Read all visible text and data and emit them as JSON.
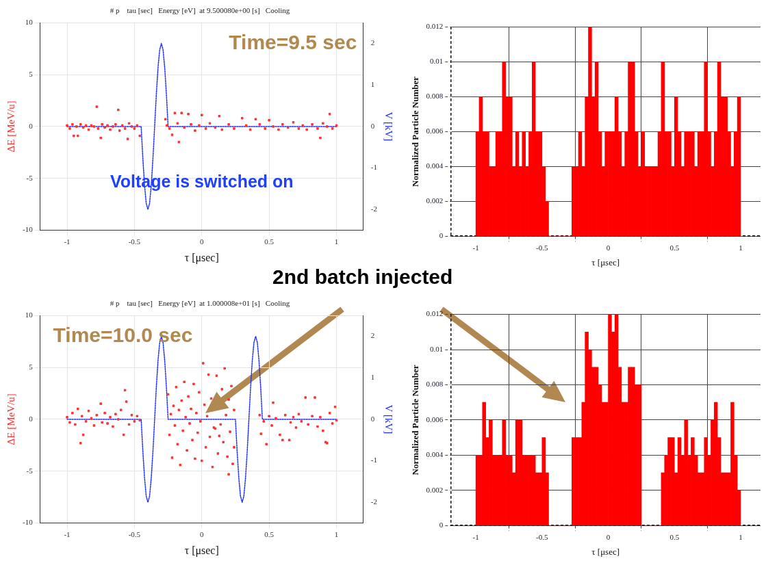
{
  "chart_data": [
    {
      "type": "scatter",
      "title": "# p    tau [sec]   Energy [eV]  at 9.500080e+00 [s]   Cooling",
      "xlabel": "τ [μsec]",
      "ylabel": "ΔE [MeV/u]",
      "y2label": "V [kV]",
      "annotations": [
        "Time=9.5 sec",
        "Voltage is switched on"
      ],
      "xlim": [
        -1.2,
        1.2
      ],
      "xticks": [
        -1,
        -0.5,
        0,
        0.5,
        1
      ],
      "ylim": [
        -10,
        10
      ],
      "yticks": [
        -10,
        -5,
        0,
        5,
        10
      ],
      "y2lim": [
        -2.5,
        2.5
      ],
      "y2ticks": [
        -2,
        -1,
        0,
        1,
        2
      ],
      "grid": true,
      "series": [
        {
          "type": "scatter",
          "color": "#ff3030",
          "marker": "square",
          "x": [
            -1,
            -0.98,
            -0.96,
            -0.95,
            -0.93,
            -0.92,
            -0.9,
            -0.88,
            -0.86,
            -0.84,
            -0.82,
            -0.8,
            -0.78,
            -0.77,
            -0.75,
            -0.74,
            -0.72,
            -0.7,
            -0.68,
            -0.66,
            -0.64,
            -0.62,
            -0.61,
            -0.59,
            -0.57,
            -0.55,
            -0.54,
            -0.52,
            -0.5,
            -0.48,
            -0.46,
            -0.27,
            -0.26,
            -0.24,
            -0.22,
            -0.2,
            -0.18,
            -0.17,
            -0.15,
            -0.13,
            -0.1,
            -0.08,
            -0.05,
            -0.02,
            0,
            0.03,
            0.06,
            0.1,
            0.13,
            0.15,
            0.2,
            0.24,
            0.3,
            0.33,
            0.36,
            0.4,
            0.43,
            0.47,
            0.5,
            0.53,
            0.57,
            0.6,
            0.64,
            0.68,
            0.72,
            0.75,
            0.78,
            0.82,
            0.86,
            0.88,
            0.9,
            0.93,
            0.95,
            0.97,
            1
          ],
          "values": [
            0.1,
            -0.2,
            0.2,
            -0.9,
            0,
            -0.9,
            0.2,
            -0.1,
            0.1,
            -0.3,
            0.1,
            0,
            1.9,
            -0.2,
            -1.1,
            0.2,
            -0.1,
            0.1,
            -0.3,
            0,
            0.2,
            1.6,
            -0.4,
            0.1,
            -0.2,
            -1.2,
            0.3,
            0,
            -0.2,
            0.1,
            -0.9,
            0.7,
            0.1,
            -0.2,
            -0.8,
            1.3,
            0.3,
            -1.5,
            1.3,
            -0.1,
            1.2,
            0.2,
            -0.4,
            0.1,
            1.1,
            -0.2,
            0.3,
            -0.1,
            1,
            -0.3,
            0.2,
            -0.2,
            0.8,
            0.1,
            -0.3,
            0.7,
            0.2,
            -0.2,
            0.6,
            0,
            -0.3,
            0.2,
            -0.1,
            0.4,
            -0.2,
            0.1,
            -0.3,
            0.2,
            -0.2,
            -1.1,
            0.3,
            0,
            1.2,
            -0.2,
            0.1
          ]
        },
        {
          "type": "line",
          "axis": "y2",
          "color": "#2030ff",
          "line_style": "dotted",
          "marker": "none",
          "x": [
            -1,
            -0.45,
            -0.4375,
            -0.425,
            -0.4125,
            -0.4,
            -0.3875,
            -0.375,
            -0.3625,
            -0.35,
            -0.3375,
            -0.325,
            -0.3125,
            -0.3,
            -0.2875,
            -0.275,
            -0.2625,
            -0.25,
            1
          ],
          "values": [
            0,
            0,
            -0.77,
            -1.41,
            -1.85,
            -2,
            -1.85,
            -1.41,
            -0.77,
            0,
            0.77,
            1.41,
            1.85,
            2,
            1.85,
            1.41,
            0.77,
            0,
            0
          ]
        }
      ]
    },
    {
      "type": "histogram",
      "xlabel": "τ [μsec]",
      "ylabel": "Normalized Particle Number",
      "xlim": [
        -1.19,
        1.15
      ],
      "xticks": [
        -1,
        -0.5,
        0,
        0.5,
        1
      ],
      "ylim": [
        0,
        0.012
      ],
      "yticks": [
        0,
        0.002,
        0.004,
        0.006,
        0.008,
        0.01,
        0.012
      ],
      "grid": true,
      "color": "#ff0000",
      "bins": [
        -1,
        -0.975,
        -0.95,
        -0.925,
        -0.9,
        -0.875,
        -0.85,
        -0.825,
        -0.8,
        -0.775,
        -0.75,
        -0.725,
        -0.7,
        -0.675,
        -0.65,
        -0.625,
        -0.6,
        -0.575,
        -0.55,
        -0.525,
        -0.5,
        -0.475,
        -0.45,
        -0.425,
        -0.4,
        -0.375,
        -0.35,
        -0.325,
        -0.3,
        -0.275,
        -0.25,
        -0.225,
        -0.2,
        -0.175,
        -0.15,
        -0.125,
        -0.1,
        -0.075,
        -0.05,
        -0.025,
        0,
        0.025,
        0.05,
        0.075,
        0.1,
        0.125,
        0.15,
        0.175,
        0.2,
        0.225,
        0.25,
        0.275,
        0.3,
        0.325,
        0.35,
        0.375,
        0.4,
        0.425,
        0.45,
        0.475,
        0.5,
        0.525,
        0.55,
        0.575,
        0.6,
        0.625,
        0.65,
        0.675,
        0.7,
        0.725,
        0.75,
        0.775,
        0.8,
        0.825,
        0.85,
        0.875,
        0.9,
        0.925,
        0.95,
        0.975,
        1
      ],
      "values": [
        0.006,
        0.008,
        0.006,
        0.006,
        0.004,
        0.004,
        0.006,
        0.006,
        0.01,
        0.008,
        0.008,
        0.004,
        0.006,
        0.004,
        0.006,
        0.004,
        0.006,
        0.01,
        0.006,
        0.006,
        0.004,
        0.002,
        0,
        0,
        0,
        0,
        0,
        0,
        0,
        0.004,
        0.004,
        0.006,
        0.004,
        0.008,
        0.012,
        0.008,
        0.01,
        0.006,
        0.004,
        0.006,
        0.006,
        0.006,
        0.008,
        0.006,
        0.004,
        0.006,
        0.01,
        0.01,
        0.006,
        0.004,
        0.006,
        0.004,
        0.004,
        0.004,
        0.004,
        0.006,
        0.01,
        0.006,
        0.006,
        0.004,
        0.008,
        0.006,
        0.004,
        0.006,
        0.006,
        0.006,
        0.004,
        0.006,
        0.006,
        0.01,
        0.006,
        0.004,
        0.006,
        0.01,
        0.008,
        0.008,
        0.006,
        0.004,
        0.006,
        0.008
      ]
    },
    {
      "type": "scatter",
      "title": "# p    tau [sec]   Energy [eV]  at 1.000008e+01 [s]   Cooling",
      "xlabel": "τ [μsec]",
      "ylabel": "ΔE [MeV/u]",
      "y2label": "V [kV]",
      "annotations": [
        "Time=10.0 sec",
        "2nd batch injected"
      ],
      "xlim": [
        -1.2,
        1.2
      ],
      "xticks": [
        -1,
        -0.5,
        0,
        0.5,
        1
      ],
      "ylim": [
        -10,
        10
      ],
      "yticks": [
        -10,
        -5,
        0,
        5,
        10
      ],
      "y2lim": [
        -2.5,
        2.5
      ],
      "y2ticks": [
        -2,
        -1,
        0,
        1,
        2
      ],
      "grid": true,
      "series": [
        {
          "type": "scatter",
          "color": "#ff3030",
          "marker": "square",
          "x": [
            -1,
            -0.98,
            -0.96,
            -0.94,
            -0.92,
            -0.9,
            -0.89,
            -0.88,
            -0.86,
            -0.84,
            -0.82,
            -0.8,
            -0.78,
            -0.75,
            -0.74,
            -0.72,
            -0.7,
            -0.68,
            -0.66,
            -0.64,
            -0.62,
            -0.6,
            -0.58,
            -0.57,
            -0.56,
            -0.54,
            -0.52,
            -0.5,
            -0.48,
            -0.46,
            -0.25,
            -0.24,
            -0.23,
            -0.22,
            -0.21,
            -0.2,
            -0.19,
            -0.18,
            -0.17,
            -0.16,
            -0.15,
            -0.14,
            -0.13,
            -0.12,
            -0.11,
            -0.1,
            -0.09,
            -0.08,
            -0.07,
            -0.06,
            -0.05,
            -0.04,
            -0.03,
            -0.02,
            -0.01,
            0,
            0.01,
            0.02,
            0.03,
            0.04,
            0.05,
            0.06,
            0.07,
            0.08,
            0.09,
            0.1,
            0.11,
            0.12,
            0.13,
            0.14,
            0.15,
            0.16,
            0.17,
            0.18,
            0.19,
            0.2,
            0.21,
            0.22,
            0.23,
            0.24,
            0.24,
            0.2,
            0.43,
            0.44,
            0.46,
            0.48,
            0.5,
            0.52,
            0.53,
            0.55,
            0.58,
            0.6,
            0.62,
            0.65,
            0.66,
            0.68,
            0.7,
            0.72,
            0.74,
            0.77,
            0.79,
            0.82,
            0.84,
            0.86,
            0.88,
            0.9,
            0.92,
            0.93,
            0.95,
            0.97,
            0.99,
            1
          ],
          "values": [
            0.2,
            -0.3,
            0.6,
            -0.5,
            1,
            -2.3,
            0.3,
            -1.5,
            -0.2,
            0.8,
            0.1,
            -0.6,
            0.4,
            1.5,
            -0.3,
            0.6,
            -0.4,
            0.2,
            -0.7,
            0.5,
            0,
            0.9,
            -1.5,
            2.8,
            1.7,
            -0.5,
            0.4,
            -0.2,
            0.3,
            -0.1,
            2.4,
            -1.5,
            0.5,
            -3.7,
            1.3,
            -0.6,
            3.1,
            -2.4,
            0.9,
            -4.4,
            1.8,
            -1.1,
            3.6,
            0.2,
            -3,
            2.2,
            -0.4,
            1,
            -2,
            3.4,
            -3.8,
            0.6,
            -1.3,
            2.6,
            -0.2,
            -4,
            5.4,
            1.4,
            -2.7,
            0.3,
            4.3,
            -1.7,
            2,
            -4.6,
            -0.8,
            -0.9,
            4.2,
            -3.3,
            -1.6,
            -0.5,
            2.9,
            -2.2,
            4.9,
            0.4,
            -3.6,
            1.9,
            -1.2,
            3.2,
            -4.3,
            0.9,
            -2.7,
            -5.3,
            0.4,
            -1.4,
            -0.2,
            -2.4,
            0.3,
            -0.6,
            1.6,
            0.1,
            -1.5,
            -2,
            0.4,
            -2,
            -0.3,
            0.2,
            -0.8,
            0.5,
            -0.2,
            2.1,
            -0.5,
            0.3,
            2.1,
            -0.7,
            0.2,
            -1.1,
            -2.2,
            -2.3,
            0.6,
            -0.4,
            1.2,
            -0.1
          ]
        },
        {
          "type": "line",
          "axis": "y2",
          "color": "#2030ff",
          "line_style": "dotted",
          "marker": "none",
          "x": [
            -1,
            -0.45,
            -0.4375,
            -0.425,
            -0.4125,
            -0.4,
            -0.3875,
            -0.375,
            -0.3625,
            -0.35,
            -0.3375,
            -0.325,
            -0.3125,
            -0.3,
            -0.2875,
            -0.275,
            -0.2625,
            -0.25,
            0.25,
            0.2625,
            0.275,
            0.2875,
            0.3,
            0.3125,
            0.325,
            0.3375,
            0.35,
            0.3625,
            0.375,
            0.3875,
            0.4,
            0.4125,
            0.425,
            0.4375,
            0.45,
            1
          ],
          "values": [
            0,
            0,
            -0.77,
            -1.41,
            -1.85,
            -2,
            -1.85,
            -1.41,
            -0.77,
            0,
            0.77,
            1.41,
            1.85,
            2,
            1.85,
            1.41,
            0.77,
            0,
            0,
            -0.77,
            -1.41,
            -1.85,
            -2,
            -1.85,
            -1.41,
            -0.77,
            0,
            0.77,
            1.41,
            1.85,
            2,
            1.85,
            1.41,
            0.77,
            0,
            0
          ]
        }
      ]
    },
    {
      "type": "histogram",
      "xlabel": "τ [μsec]",
      "ylabel": "Normalized Particle Number",
      "xlim": [
        -1.19,
        1.15
      ],
      "xticks": [
        -1,
        -0.5,
        0,
        0.5,
        1
      ],
      "ylim": [
        0,
        0.012
      ],
      "yticks": [
        0,
        0.002,
        0.004,
        0.006,
        0.008,
        0.01,
        0.012
      ],
      "grid": true,
      "color": "#ff0000",
      "bins": [
        -1,
        -0.975,
        -0.95,
        -0.925,
        -0.9,
        -0.875,
        -0.85,
        -0.825,
        -0.8,
        -0.775,
        -0.75,
        -0.725,
        -0.7,
        -0.675,
        -0.65,
        -0.625,
        -0.6,
        -0.575,
        -0.55,
        -0.525,
        -0.5,
        -0.475,
        -0.45,
        -0.425,
        -0.4,
        -0.375,
        -0.35,
        -0.325,
        -0.3,
        -0.275,
        -0.25,
        -0.225,
        -0.2,
        -0.175,
        -0.15,
        -0.125,
        -0.1,
        -0.075,
        -0.05,
        -0.025,
        0,
        0.025,
        0.05,
        0.075,
        0.1,
        0.125,
        0.15,
        0.175,
        0.2,
        0.225,
        0.25,
        0.275,
        0.3,
        0.325,
        0.35,
        0.375,
        0.4,
        0.425,
        0.45,
        0.475,
        0.5,
        0.525,
        0.55,
        0.575,
        0.6,
        0.625,
        0.65,
        0.675,
        0.7,
        0.725,
        0.75,
        0.775,
        0.8,
        0.825,
        0.85,
        0.875,
        0.9,
        0.925,
        0.95,
        0.975,
        1
      ],
      "values": [
        0.004,
        0.004,
        0.007,
        0.005,
        0.006,
        0.004,
        0.004,
        0.004,
        0.006,
        0.004,
        0.004,
        0.003,
        0.006,
        0.006,
        0.004,
        0.004,
        0.004,
        0.004,
        0.003,
        0.003,
        0.005,
        0.003,
        0,
        0,
        0,
        0,
        0,
        0,
        0,
        0.005,
        0.005,
        0.005,
        0.007,
        0.011,
        0.01,
        0.009,
        0.009,
        0.008,
        0.007,
        0.007,
        0.012,
        0.011,
        0.012,
        0.009,
        0.007,
        0.007,
        0.009,
        0.009,
        0.008,
        0.008,
        0,
        0,
        0,
        0,
        0,
        0,
        0.003,
        0.004,
        0.005,
        0.005,
        0.003,
        0.005,
        0.004,
        0.006,
        0.004,
        0.005,
        0.004,
        0.003,
        0.003,
        0.005,
        0.004,
        0.006,
        0.007,
        0.005,
        0.003,
        0.003,
        0.003,
        0.007,
        0.004,
        0.002
      ]
    }
  ]
}
